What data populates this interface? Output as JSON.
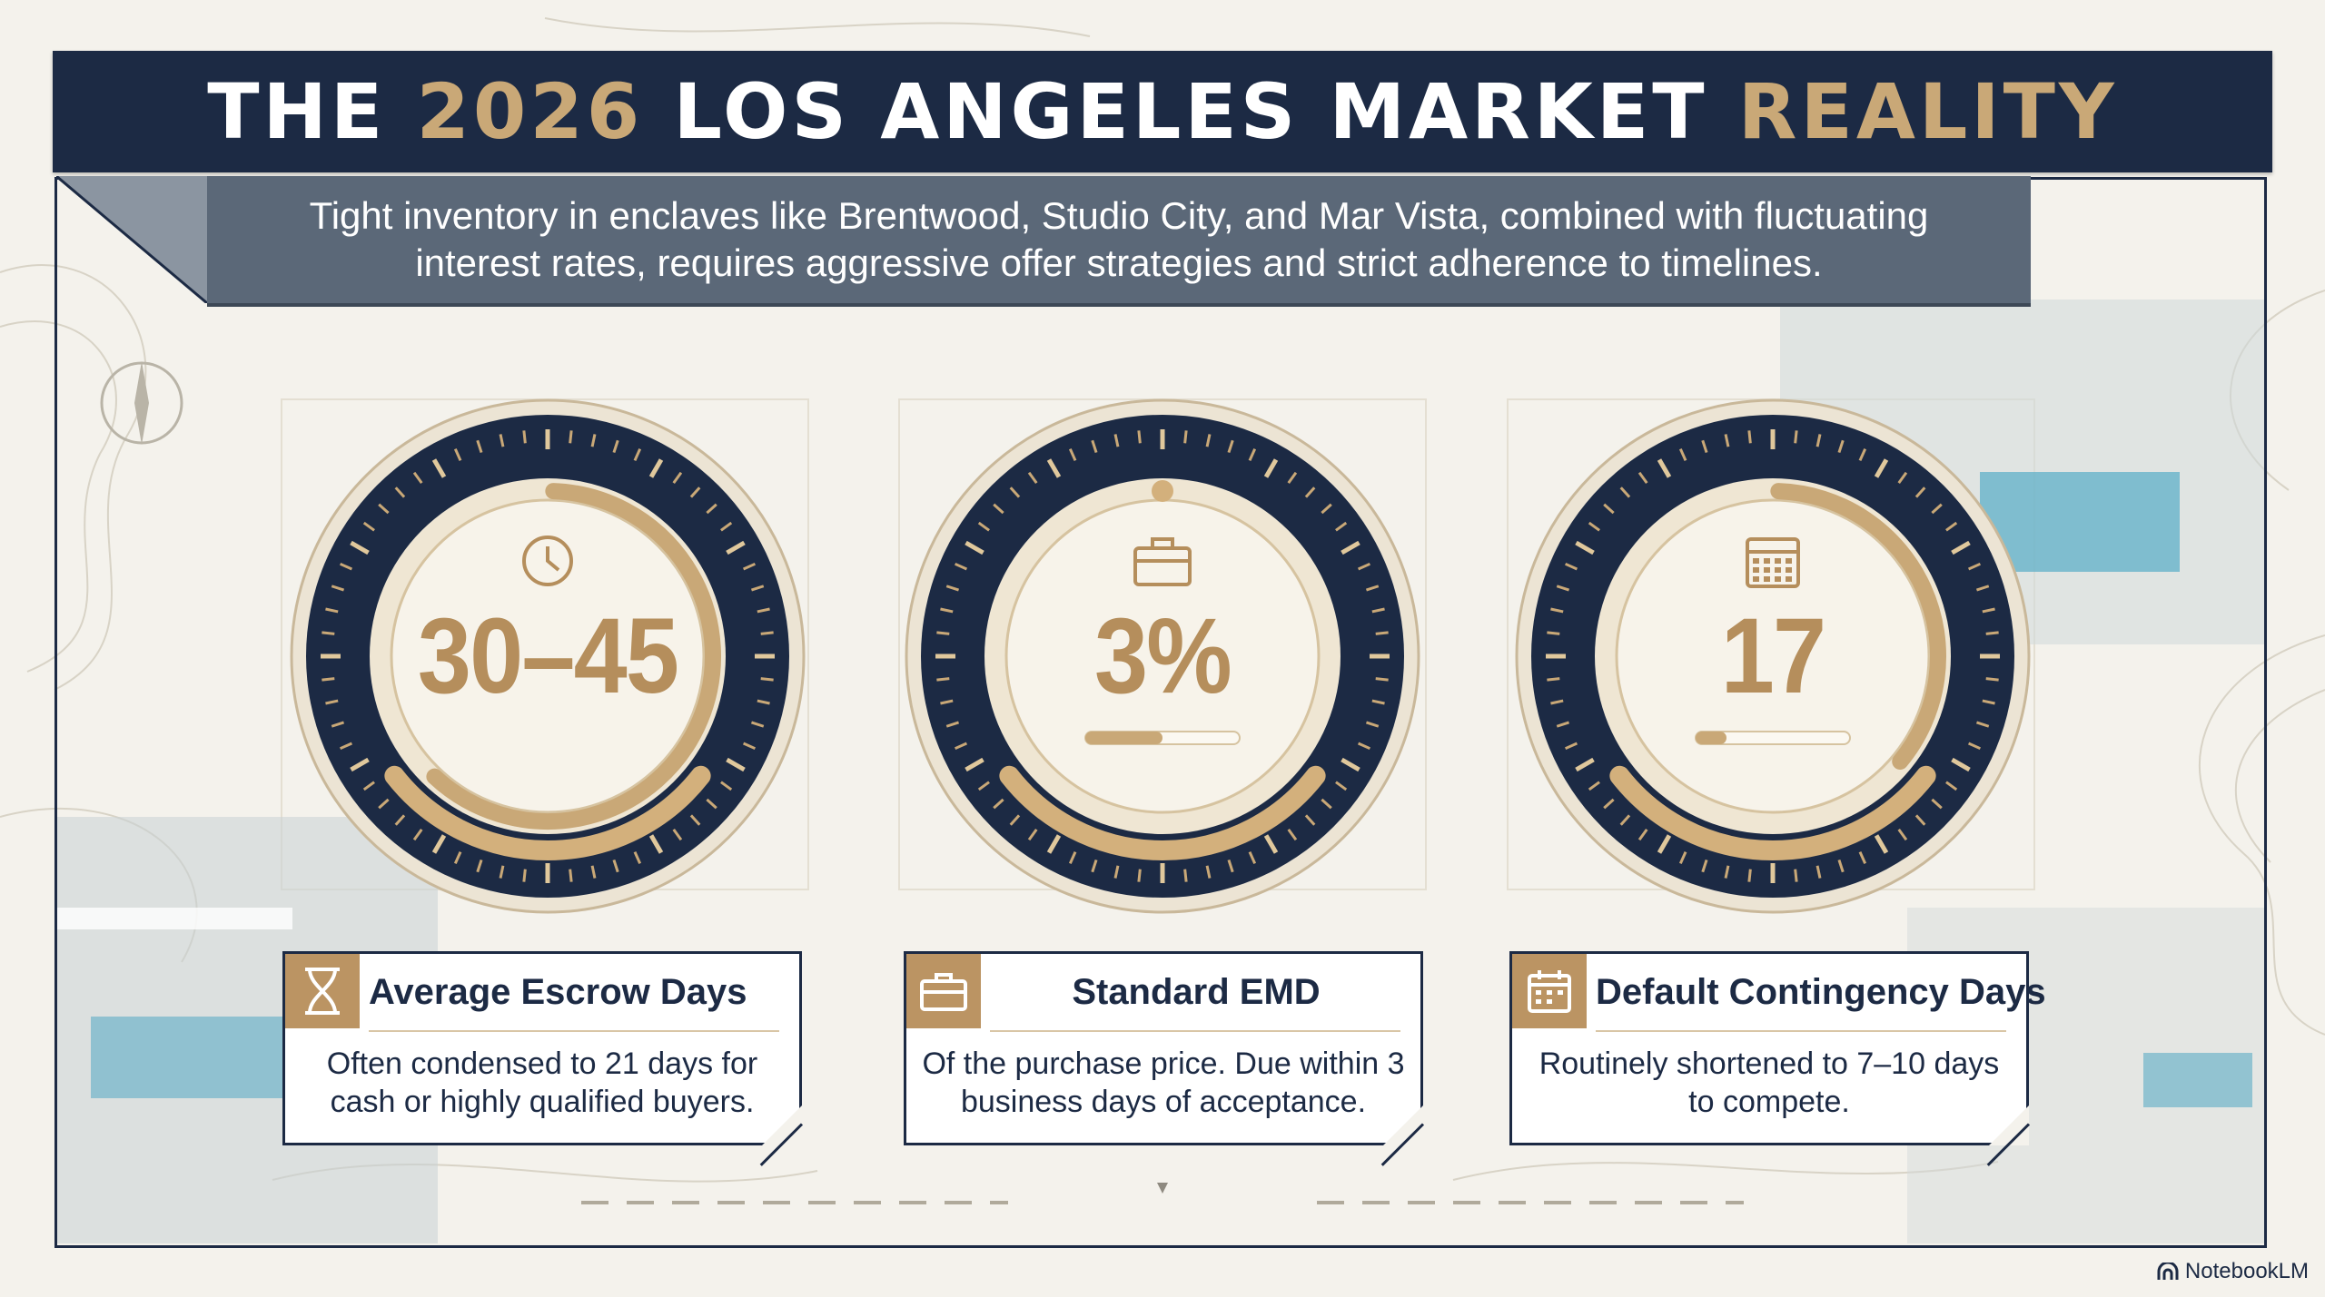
{
  "header": {
    "title_part1": "THE ",
    "title_year": "2026",
    "title_part2": " LOS ANGELES MARKET ",
    "title_part3": "REALITY",
    "subtitle": "Tight inventory in enclaves like Brentwood, Studio City, and Mar Vista, combined with fluctuating interest rates, requires aggressive offer strategies and strict adherence to timelines."
  },
  "metrics": [
    {
      "value": "30–45",
      "icon": "clock-icon",
      "card_icon": "hourglass-icon",
      "card_title": "Average Escrow Days",
      "card_desc": "Often condensed to 21 days for cash or highly qualified buyers.",
      "arc_fraction": 0.62
    },
    {
      "value": "3%",
      "icon": "briefcase-icon",
      "card_icon": "briefcase-icon",
      "card_title": "Standard EMD",
      "card_desc": "Of the purchase price. Due within 3 business days of acceptance.",
      "bar_fraction": 0.5
    },
    {
      "value": "17",
      "icon": "calendar-icon",
      "card_icon": "calendar-icon",
      "card_title": "Default Contingency Days",
      "card_desc": "Routinely shortened to 7–10 days to compete.",
      "arc_fraction": 0.36,
      "bar_fraction": 0.2
    }
  ],
  "brand": {
    "name": "NotebookLM"
  },
  "colors": {
    "navy": "#1c2a44",
    "gold": "#c9a877",
    "slate": "#5b6878",
    "cream": "#f4f2ec"
  }
}
